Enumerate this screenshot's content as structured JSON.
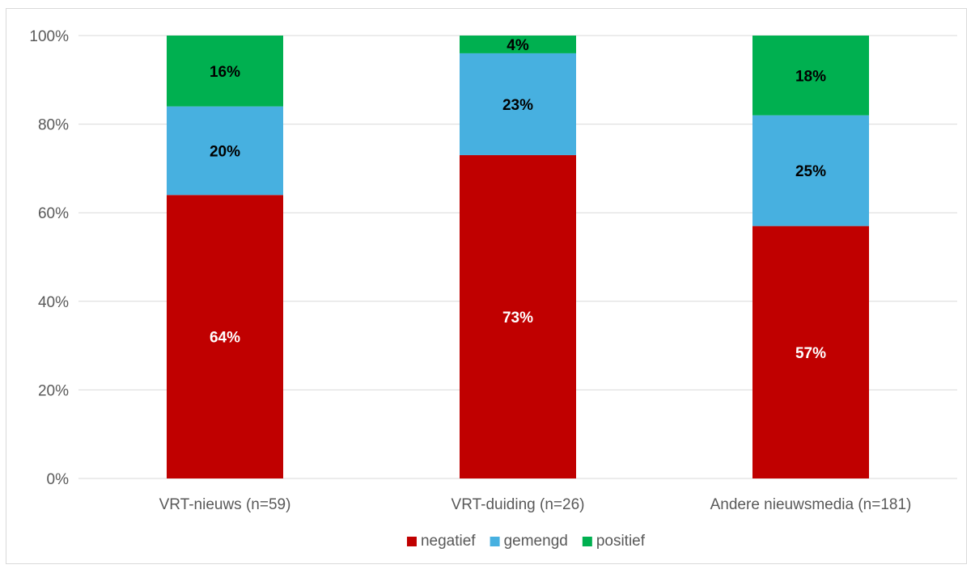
{
  "chart_data": {
    "type": "bar",
    "stacked": true,
    "percent_stacked": true,
    "categories": [
      "VRT-nieuws (n=59)",
      "VRT-duiding (n=26)",
      "Andere nieuwsmedia (n=181)"
    ],
    "series": [
      {
        "name": "negatief",
        "values": [
          64,
          73,
          57
        ],
        "labels": [
          "64%",
          "73%",
          "57%"
        ],
        "color": "#c00000",
        "label_color": "#ffffff"
      },
      {
        "name": "gemengd",
        "values": [
          20,
          23,
          25
        ],
        "labels": [
          "20%",
          "23%",
          "25%"
        ],
        "color": "#47b0e0",
        "label_color": "#000000"
      },
      {
        "name": "positief",
        "values": [
          16,
          4,
          18
        ],
        "labels": [
          "16%",
          "4%",
          "18%"
        ],
        "color": "#00b050",
        "label_color": "#000000"
      }
    ],
    "y_ticks": [
      "0%",
      "20%",
      "40%",
      "60%",
      "80%",
      "100%"
    ],
    "ylim": [
      0,
      100
    ],
    "grid": true,
    "legend_position": "bottom",
    "title": "",
    "xlabel": "",
    "ylabel": ""
  }
}
